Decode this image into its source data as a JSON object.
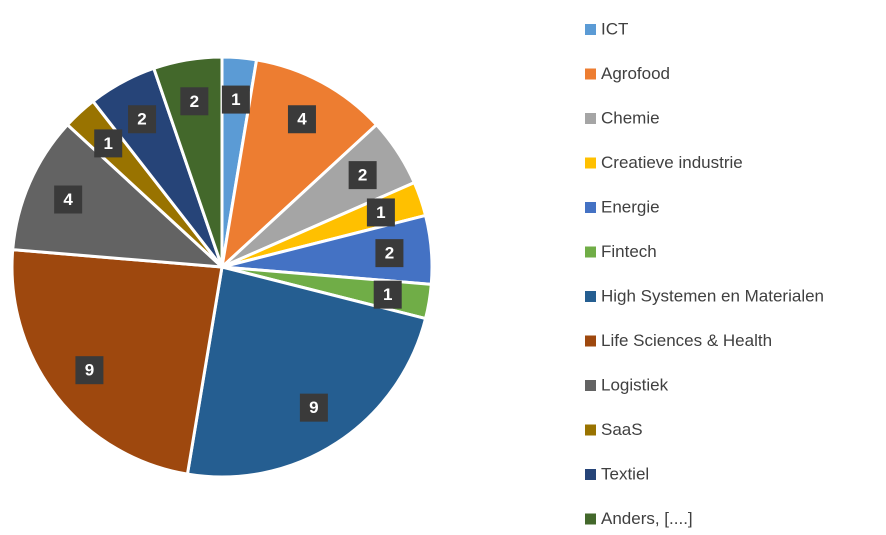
{
  "chart_data": {
    "type": "pie",
    "categories": [
      "ICT",
      "Agrofood",
      "Chemie",
      "Creatieve industrie",
      "Energie",
      "Fintech",
      "High Systemen en Materialen",
      "Life Sciences & Health",
      "Logistiek",
      "SaaS",
      "Textiel",
      "Anders, [....]"
    ],
    "values": [
      1,
      4,
      2,
      1,
      2,
      1,
      9,
      9,
      4,
      1,
      2,
      2
    ],
    "colors": [
      "#5b9bd5",
      "#ed7d31",
      "#a5a5a5",
      "#ffc000",
      "#4472c4",
      "#70ad47",
      "#255e91",
      "#9e480e",
      "#636363",
      "#997300",
      "#264478",
      "#43682b"
    ],
    "legend": "right"
  }
}
